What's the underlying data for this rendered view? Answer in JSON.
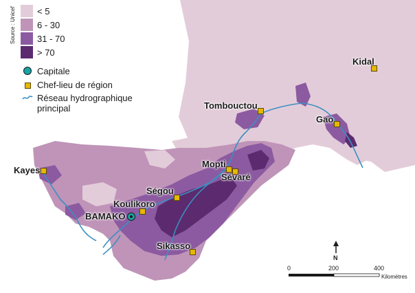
{
  "legend": {
    "classes": [
      {
        "label": "< 5",
        "color": "#e3ccd9"
      },
      {
        "label": "6 - 30",
        "color": "#bf94b8"
      },
      {
        "label": "31 - 70",
        "color": "#8c5aa0"
      },
      {
        "label": "> 70",
        "color": "#5c2a6e"
      }
    ],
    "source": "Source : Unicef",
    "capital_label": "Capitale",
    "regional_label": "Chef-lieu de région",
    "river_label_line1": "Réseau hydrographique",
    "river_label_line2": "principal"
  },
  "cities": {
    "kidal": "Kidal",
    "tombouctou": "Tombouctou",
    "gao": "Gao",
    "mopti": "Mopti",
    "sevare": "Sévaré",
    "kayes": "Kayes",
    "segou": "Ségou",
    "koulikoro": "Koulikoro",
    "bamako": "BAMAKO",
    "sikasso": "Sikasso"
  },
  "scale": {
    "t0": "0",
    "t1": "200",
    "t2": "400",
    "unit": "Kilomètres"
  },
  "north": "N",
  "colors": {
    "river": "#3b8fc2",
    "marker": "#e6b800"
  }
}
